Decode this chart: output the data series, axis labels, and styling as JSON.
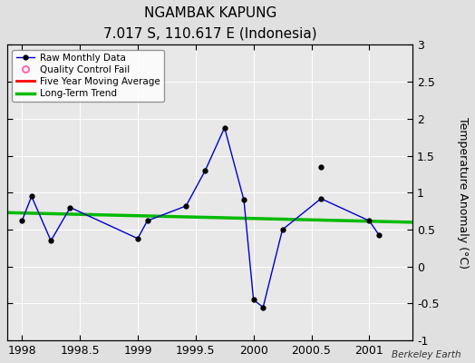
{
  "title": "NGAMBAK KAPUNG",
  "subtitle": "7.017 S, 110.617 E (Indonesia)",
  "ylabel": "Temperature Anomaly (°C)",
  "attribution": "Berkeley Earth",
  "xlim": [
    1997.875,
    2001.375
  ],
  "ylim": [
    -1,
    3
  ],
  "yticks": [
    -1,
    -0.5,
    0,
    0.5,
    1,
    1.5,
    2,
    2.5,
    3
  ],
  "xticks": [
    1998,
    1998.5,
    1999,
    1999.5,
    2000,
    2000.5,
    2001
  ],
  "raw_x": [
    1998.0,
    1998.083,
    1998.25,
    1998.417,
    1999.0,
    1999.083,
    1999.417,
    1999.583,
    1999.75,
    1999.917,
    2000.0,
    2000.083,
    2000.25,
    2000.583,
    2001.0,
    2001.083
  ],
  "raw_y": [
    0.62,
    0.95,
    0.35,
    0.8,
    0.38,
    0.62,
    0.82,
    1.3,
    1.88,
    0.9,
    -0.45,
    -0.55,
    0.5,
    0.92,
    0.62,
    0.43
  ],
  "trend_x": [
    1997.875,
    2001.375
  ],
  "trend_y": [
    0.73,
    0.6
  ],
  "isolated_x": [
    2000.583
  ],
  "isolated_y": [
    1.35
  ],
  "bg_color": "#e0e0e0",
  "plot_bg_color": "#e8e8e8",
  "raw_line_color": "#0000cc",
  "raw_marker_color": "#000000",
  "trend_color": "#00bb00",
  "moving_avg_color": "#ff0000",
  "qc_color": "#ff69b4"
}
